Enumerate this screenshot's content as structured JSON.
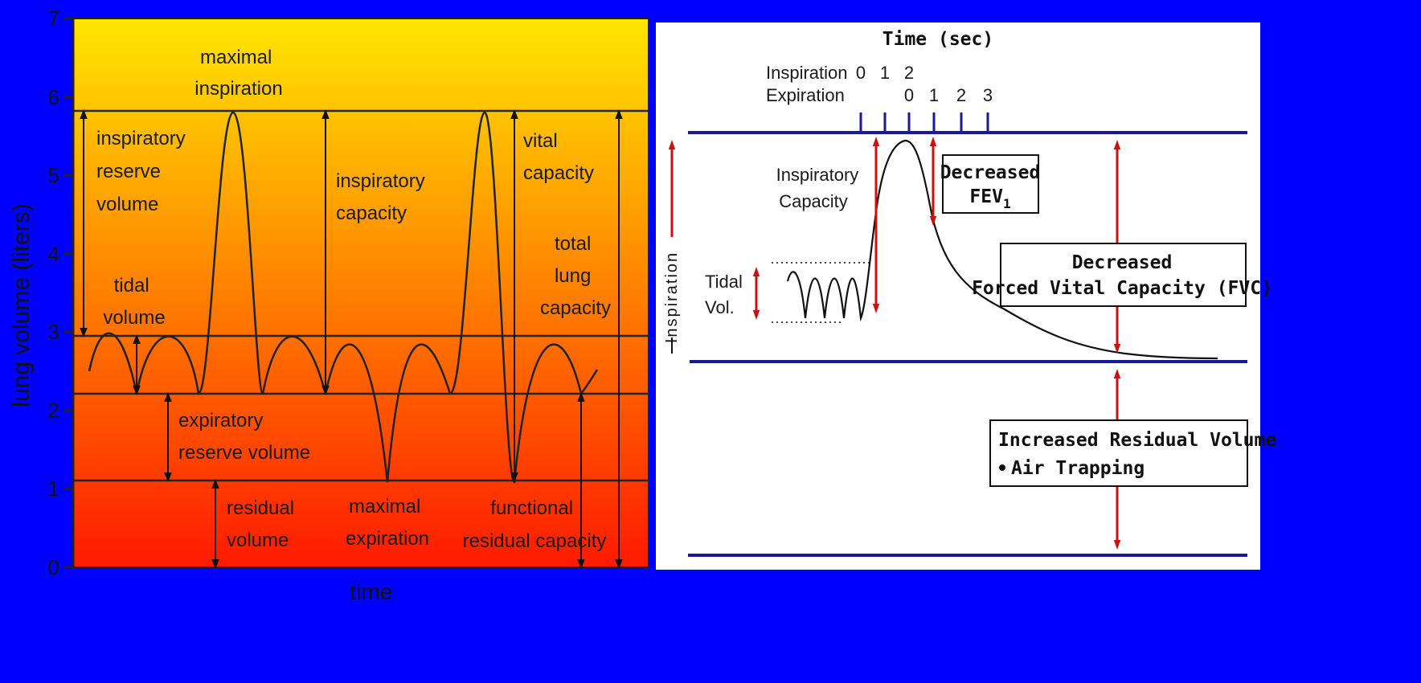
{
  "colors": {
    "background": "#0000ff",
    "gradient_top": "#ffe600",
    "gradient_bottom": "#ff1a00",
    "right_rule": "#1a1a99",
    "arrow_red": "#cc1111"
  },
  "left": {
    "y_axis_label": "lung volume (liters)",
    "x_axis_label": "time",
    "y_ticks": [
      "0",
      "1",
      "2",
      "3",
      "4",
      "5",
      "6",
      "7"
    ],
    "labels": {
      "maximal_inspiration": [
        "maximal",
        "inspiration"
      ],
      "irv": [
        "inspiratory",
        "reserve",
        "volume"
      ],
      "tidal": [
        "tidal",
        "volume"
      ],
      "ic": [
        "inspiratory",
        "capacity"
      ],
      "vc": [
        "vital",
        "capacity"
      ],
      "tlc": [
        "total",
        "lung",
        "capacity"
      ],
      "erv": [
        "expiratory",
        "reserve volume"
      ],
      "rv": [
        "residual",
        "volume"
      ],
      "max_exp": [
        "maximal",
        "expiration"
      ],
      "frc": [
        "functional",
        "residual capacity"
      ]
    }
  },
  "right": {
    "time_title": "Time (sec)",
    "inspiration_label": "Inspiration",
    "expiration_label": "Expiration",
    "inspiration_ticks": [
      "0",
      "1",
      "2"
    ],
    "expiration_ticks": [
      "0",
      "1",
      "2",
      "3"
    ],
    "side_label": "Inspiration",
    "ic_label": [
      "Inspiratory",
      "Capacity"
    ],
    "tidal_label": [
      "Tidal",
      "Vol."
    ],
    "fev_box": [
      "Decreased",
      "FEV",
      "1"
    ],
    "fvc_box": [
      "Decreased",
      "Forced Vital Capacity (FVC)"
    ],
    "rv_box": [
      "Increased Residual Volume",
      "Air Trapping"
    ]
  }
}
